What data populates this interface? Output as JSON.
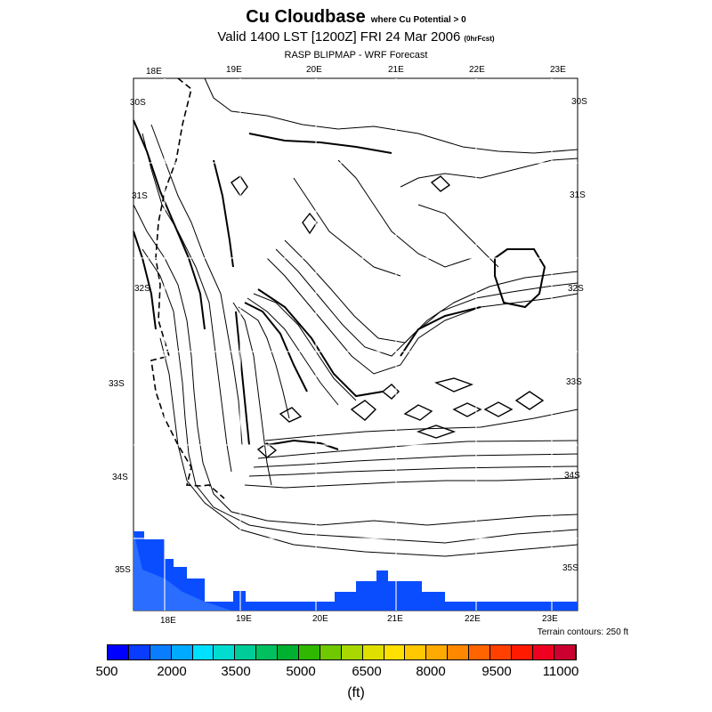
{
  "title": {
    "main": "Cu Cloudbase",
    "qualifier": "where Cu Potential > 0",
    "valid": "Valid 1400 LST [1200Z] FRI 24 Mar 2006",
    "forecast_hour": "(0hrFcst)",
    "subtitle": "RASP BLIPMAP - WRF Forecast"
  },
  "map": {
    "top_lon_labels": [
      "18E",
      "19E",
      "20E",
      "21E",
      "22E",
      "23E"
    ],
    "bottom_lon_labels": [
      "18E",
      "19E",
      "20E",
      "21E",
      "22E",
      "23E"
    ],
    "left_lat_labels": [
      "30S",
      "31S",
      "32S",
      "33S",
      "34S",
      "35S"
    ],
    "right_lat_labels": [
      "30S",
      "31S",
      "32S",
      "33S",
      "34S",
      "35S"
    ],
    "terrain_note": "Terrain contours: 250 ft",
    "colors": {
      "low_fill": "#0028ff",
      "mid_fill": "#0a4dff",
      "ocean": "#ffffff",
      "contour": "#000000"
    }
  },
  "colorbar": {
    "colors": [
      "#0000ff",
      "#0a3cff",
      "#0a7dff",
      "#00aaff",
      "#00e0ff",
      "#00ddd0",
      "#00cc99",
      "#00c060",
      "#00b030",
      "#30b800",
      "#70c800",
      "#a8d800",
      "#e0e000",
      "#ffe000",
      "#ffc800",
      "#ffaa00",
      "#ff8800",
      "#ff6400",
      "#ff4000",
      "#ff1a00",
      "#ee0020",
      "#cc0030"
    ],
    "tick_labels": [
      "500",
      "2000",
      "3500",
      "5000",
      "6500",
      "8000",
      "9500",
      "11000"
    ],
    "units": "(ft)"
  }
}
